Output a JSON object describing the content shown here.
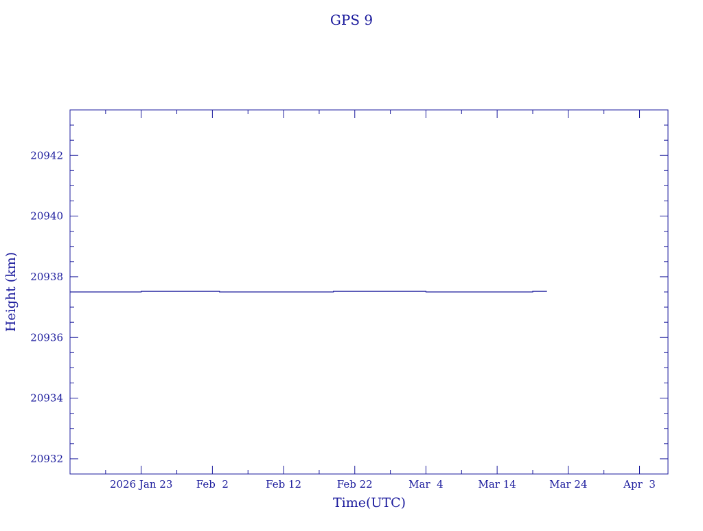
{
  "chart_data": {
    "type": "line",
    "title": "GPS 9",
    "xlabel": "Time(UTC)",
    "ylabel": "Height (km)",
    "color": "#1a1a9c",
    "grid": false,
    "legend": "none",
    "x_axis": {
      "type": "date",
      "range": [
        "2026-01-13",
        "2026-04-07"
      ],
      "ticks": [
        {
          "date": "2026-01-23",
          "label": "2026 Jan 23"
        },
        {
          "date": "2026-02-02",
          "label": "Feb  2"
        },
        {
          "date": "2026-02-12",
          "label": "Feb 12"
        },
        {
          "date": "2026-02-22",
          "label": "Feb 22"
        },
        {
          "date": "2026-03-04",
          "label": "Mar  4"
        },
        {
          "date": "2026-03-14",
          "label": "Mar 14"
        },
        {
          "date": "2026-03-24",
          "label": "Mar 24"
        },
        {
          "date": "2026-04-03",
          "label": "Apr  3"
        }
      ]
    },
    "y_axis": {
      "range": [
        20931.5,
        20943.5
      ],
      "ticks": [
        {
          "value": 20932,
          "label": "20932"
        },
        {
          "value": 20934,
          "label": "20934"
        },
        {
          "value": 20936,
          "label": "20936"
        },
        {
          "value": 20938,
          "label": "20938"
        },
        {
          "value": 20940,
          "label": "20940"
        },
        {
          "value": 20942,
          "label": "20942"
        }
      ]
    },
    "series": [
      {
        "points": [
          {
            "x": "2026-01-13",
            "y": 20937.5
          },
          {
            "x": "2026-01-23",
            "y": 20937.5
          },
          {
            "x": "2026-01-23",
            "y": 20937.52
          },
          {
            "x": "2026-02-03",
            "y": 20937.52
          },
          {
            "x": "2026-02-03",
            "y": 20937.5
          },
          {
            "x": "2026-02-19",
            "y": 20937.5
          },
          {
            "x": "2026-02-19",
            "y": 20937.52
          },
          {
            "x": "2026-03-04",
            "y": 20937.52
          },
          {
            "x": "2026-03-04",
            "y": 20937.5
          },
          {
            "x": "2026-03-19",
            "y": 20937.5
          },
          {
            "x": "2026-03-19",
            "y": 20937.52
          },
          {
            "x": "2026-03-21",
            "y": 20937.52
          }
        ]
      }
    ]
  }
}
